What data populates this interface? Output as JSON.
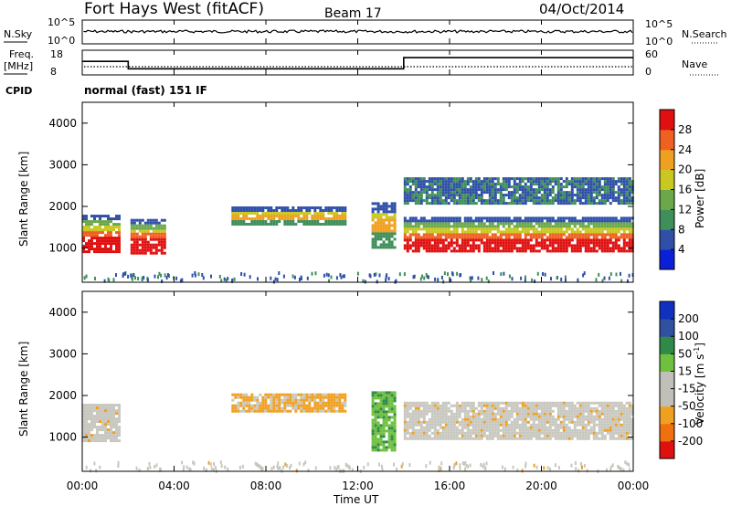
{
  "header": {
    "title": "Fort Hays West (fitACF)",
    "beam": "Beam 17",
    "date": "04/Oct/2014"
  },
  "nsky": {
    "label": "N.Sky",
    "ticks": [
      "10^5",
      "10^0"
    ],
    "right_label": "N.Search",
    "right_ticks": [
      "10^5",
      "10^0"
    ]
  },
  "freq": {
    "label_line1": "Freq.",
    "label_line2": "[MHz]",
    "ticks": [
      "18",
      "8"
    ],
    "right_label": "Nave",
    "right_ticks": [
      "60",
      "0"
    ]
  },
  "cpid": {
    "label": "CPID",
    "value": "normal (fast) 151 IF"
  },
  "x_axis": {
    "label": "Time UT",
    "ticks": [
      "00:00",
      "04:00",
      "08:00",
      "12:00",
      "16:00",
      "20:00",
      "00:00"
    ]
  },
  "y_axis": {
    "label": "Slant Range [km]",
    "ticks": [
      "1000",
      "2000",
      "3000",
      "4000"
    ]
  },
  "power_bar": {
    "label": "Power [dB]",
    "ticks": [
      "4",
      "8",
      "12",
      "16",
      "20",
      "24",
      "28"
    ],
    "colors": [
      "#0a1fd8",
      "#2f4fa8",
      "#3f8f5a",
      "#6aa84a",
      "#c8c820",
      "#f0a020",
      "#f06020",
      "#e01010"
    ]
  },
  "velocity_bar": {
    "label": "Velocity [m s",
    "label_sup": "-1",
    "label_end": "]",
    "ticks": [
      "200",
      "100",
      "50",
      "15",
      "-15",
      "-50",
      "-100",
      "-200"
    ],
    "colors": [
      "#1030c0",
      "#3050a0",
      "#2f8a4a",
      "#70c040",
      "#c0c0b8",
      "#c0c0b8",
      "#f0a020",
      "#f07010",
      "#e01010"
    ]
  },
  "chart_data": [
    {
      "type": "line",
      "title": "N.Sky / N.Search",
      "x": [
        0,
        24
      ],
      "series": [
        {
          "name": "N.Sky",
          "values": [
            50000,
            50000
          ]
        }
      ],
      "ylim": [
        1,
        100000
      ]
    },
    {
      "type": "line",
      "title": "Frequency / Nave",
      "series": [
        {
          "name": "Freq. [MHz]",
          "points": [
            [
              0,
              13.5
            ],
            [
              2,
              13.5
            ],
            [
              2,
              10.5
            ],
            [
              14,
              10.5
            ],
            [
              14,
              15
            ],
            [
              24,
              15
            ]
          ]
        },
        {
          "name": "Nave",
          "points": [
            [
              0,
              17
            ],
            [
              24,
              17
            ]
          ]
        }
      ],
      "ylim": [
        8,
        18
      ]
    },
    {
      "type": "heatmap",
      "title": "Power [dB]",
      "xlabel": "Time UT",
      "ylabel": "Slant Range [km]",
      "xlim": [
        0,
        24
      ],
      "ylim": [
        180,
        4500
      ],
      "zlim": [
        0,
        30
      ],
      "bands": [
        {
          "t0": 0.0,
          "t1": 1.6,
          "r0": 900,
          "r1": 1800,
          "level": "high"
        },
        {
          "t0": 2.1,
          "t1": 3.6,
          "r0": 900,
          "r1": 1700,
          "level": "high"
        },
        {
          "t0": 6.5,
          "t1": 11.5,
          "r0": 1550,
          "r1": 2000,
          "level": "medium"
        },
        {
          "t0": 12.6,
          "t1": 13.6,
          "r0": 1000,
          "r1": 2100,
          "level": "medium"
        },
        {
          "t0": 14.0,
          "t1": 24.0,
          "r0": 900,
          "r1": 1750,
          "level": "high"
        },
        {
          "t0": 14.0,
          "t1": 24.0,
          "r0": 2100,
          "r1": 2700,
          "level": "low"
        }
      ]
    },
    {
      "type": "heatmap",
      "title": "Velocity [m s-1]",
      "xlabel": "Time UT",
      "ylabel": "Slant Range [km]",
      "xlim": [
        0,
        24
      ],
      "ylim": [
        180,
        4500
      ],
      "zlim": [
        -200,
        200
      ],
      "bands": [
        {
          "t0": 0.0,
          "t1": 1.6,
          "r0": 900,
          "r1": 1800,
          "velocity": "near zero"
        },
        {
          "t0": 6.5,
          "t1": 11.5,
          "r0": 1600,
          "r1": 2050,
          "velocity": "-50"
        },
        {
          "t0": 12.6,
          "t1": 13.6,
          "r0": 700,
          "r1": 2100,
          "velocity": "50"
        },
        {
          "t0": 14.0,
          "t1": 24.0,
          "r0": 950,
          "r1": 1850,
          "velocity": "near zero"
        }
      ]
    }
  ]
}
